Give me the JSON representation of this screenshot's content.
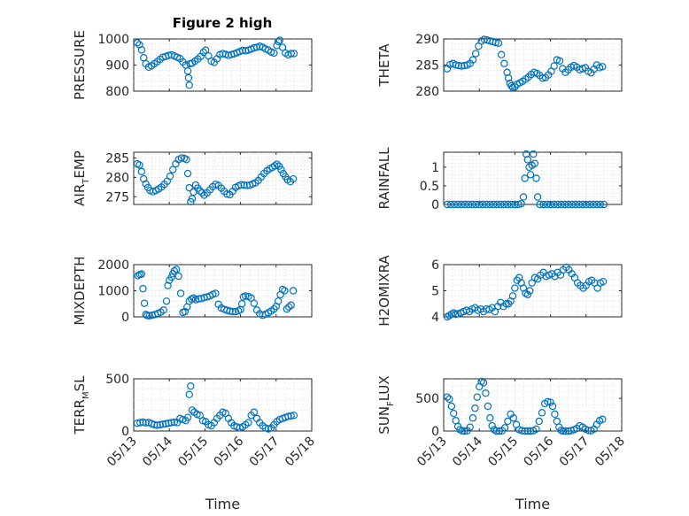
{
  "figure_title": "Figure 2 high",
  "chart_data": [
    {
      "type": "scatter",
      "ylabel": "PRESSURE",
      "ylim": [
        800,
        1000
      ],
      "yticks": [
        800,
        900,
        1000
      ],
      "ytick_labels": [
        "800",
        "900",
        "1000"
      ],
      "xlim": [
        0,
        5
      ],
      "xticks": [
        0,
        1,
        2,
        3,
        4,
        5
      ],
      "xtick_labels": [
        "05/13",
        "05/14",
        "05/15",
        "05/16",
        "05/17",
        "05/18"
      ],
      "show_xticklabels": false,
      "xlabel": "",
      "grid": true,
      "x": [
        0.1,
        0.16,
        0.22,
        0.28,
        0.34,
        0.42,
        0.5,
        0.58,
        0.66,
        0.74,
        0.82,
        0.9,
        0.98,
        1.06,
        1.14,
        1.22,
        1.3,
        1.38,
        1.46,
        1.52,
        1.54,
        1.56,
        1.58,
        1.64,
        1.72,
        1.8,
        1.88,
        1.96,
        2.02,
        2.1,
        2.18,
        2.26,
        2.34,
        2.42,
        2.5,
        2.58,
        2.66,
        2.74,
        2.82,
        2.9,
        2.98,
        3.06,
        3.14,
        3.22,
        3.3,
        3.38,
        3.46,
        3.54,
        3.62,
        3.7,
        3.78,
        3.86,
        3.94,
        4.02,
        4.06,
        4.1,
        4.18,
        4.26,
        4.34,
        4.42,
        4.5
      ],
      "y": [
        985,
        978,
        958,
        928,
        905,
        892,
        897,
        905,
        913,
        922,
        930,
        933,
        937,
        939,
        935,
        930,
        925,
        912,
        900,
        877,
        851,
        823,
        905,
        907,
        915,
        923,
        933,
        949,
        957,
        935,
        915,
        910,
        924,
        940,
        944,
        941,
        937,
        940,
        943,
        947,
        952,
        956,
        955,
        957,
        961,
        966,
        968,
        972,
        968,
        962,
        957,
        950,
        946,
        975,
        990,
        995,
        968,
        946,
        939,
        944,
        944
      ]
    },
    {
      "type": "scatter",
      "ylabel": "THETA",
      "ylim": [
        280,
        290
      ],
      "yticks": [
        280,
        285,
        290
      ],
      "ytick_labels": [
        "280",
        "285",
        "290"
      ],
      "xlim": [
        0,
        5
      ],
      "xticks": [
        0,
        1,
        2,
        3,
        4,
        5
      ],
      "xtick_labels": [
        "05/13",
        "05/14",
        "05/15",
        "05/16",
        "05/17",
        "05/18"
      ],
      "show_xticklabels": false,
      "xlabel": "",
      "grid": true,
      "x": [
        0.1,
        0.18,
        0.26,
        0.34,
        0.42,
        0.5,
        0.58,
        0.66,
        0.74,
        0.82,
        0.9,
        0.98,
        1.06,
        1.14,
        1.22,
        1.3,
        1.38,
        1.46,
        1.54,
        1.62,
        1.7,
        1.78,
        1.82,
        1.86,
        1.9,
        1.94,
        2.0,
        2.06,
        2.14,
        2.22,
        2.3,
        2.38,
        2.46,
        2.54,
        2.62,
        2.7,
        2.78,
        2.86,
        2.94,
        3.02,
        3.1,
        3.18,
        3.26,
        3.34,
        3.42,
        3.5,
        3.58,
        3.66,
        3.74,
        3.82,
        3.9,
        3.98,
        4.06,
        4.14,
        4.22,
        4.3,
        4.38,
        4.46
      ],
      "y": [
        284.3,
        285.1,
        285.3,
        285.0,
        284.9,
        284.8,
        284.9,
        285.0,
        285.3,
        286.0,
        287.2,
        288.6,
        289.6,
        289.9,
        289.8,
        289.6,
        289.5,
        289.3,
        289.2,
        287.0,
        285.3,
        283.6,
        282.5,
        281.5,
        281.0,
        280.7,
        280.8,
        281.3,
        281.6,
        281.9,
        282.3,
        282.7,
        283.2,
        283.6,
        283.4,
        283.0,
        282.5,
        282.6,
        283.1,
        283.8,
        284.8,
        286.0,
        285.8,
        284.3,
        283.6,
        284.1,
        284.6,
        284.9,
        284.6,
        284.1,
        284.3,
        284.5,
        283.8,
        283.5,
        284.2,
        285.0,
        284.5,
        284.7
      ]
    },
    {
      "type": "scatter",
      "ylabel": "AIR_T_EMP",
      "ylim": [
        273,
        286.5
      ],
      "yticks": [
        275,
        280,
        285
      ],
      "ytick_labels": [
        "275",
        "280",
        "285"
      ],
      "xlim": [
        0,
        5
      ],
      "xticks": [
        0,
        1,
        2,
        3,
        4,
        5
      ],
      "xtick_labels": [
        "05/13",
        "05/14",
        "05/15",
        "05/16",
        "05/17",
        "05/18"
      ],
      "show_xticklabels": false,
      "xlabel": "",
      "grid": true,
      "x": [
        0.1,
        0.16,
        0.22,
        0.28,
        0.34,
        0.4,
        0.46,
        0.54,
        0.62,
        0.7,
        0.78,
        0.86,
        0.94,
        1.02,
        1.1,
        1.18,
        1.26,
        1.34,
        1.42,
        1.48,
        1.52,
        1.56,
        1.6,
        1.64,
        1.68,
        1.74,
        1.8,
        1.86,
        1.92,
        1.98,
        2.06,
        2.14,
        2.22,
        2.3,
        2.38,
        2.46,
        2.54,
        2.62,
        2.7,
        2.78,
        2.86,
        2.94,
        3.02,
        3.1,
        3.18,
        3.26,
        3.34,
        3.42,
        3.5,
        3.58,
        3.66,
        3.74,
        3.82,
        3.9,
        3.96,
        4.02,
        4.08,
        4.14,
        4.2,
        4.26,
        4.32,
        4.4,
        4.48
      ],
      "y": [
        283.5,
        283.2,
        281.5,
        279.6,
        278.3,
        277.4,
        276.6,
        276.3,
        276.6,
        277.0,
        277.5,
        278.2,
        279.0,
        280.3,
        282.0,
        283.5,
        284.6,
        285.0,
        284.9,
        284.6,
        281.0,
        277.3,
        273.7,
        274.5,
        276.2,
        278.0,
        277.2,
        276.5,
        276.0,
        275.4,
        276.0,
        276.8,
        277.6,
        278.2,
        277.9,
        277.2,
        276.4,
        275.7,
        275.5,
        276.4,
        277.4,
        277.8,
        278.1,
        278.0,
        277.9,
        278.0,
        278.3,
        278.6,
        279.2,
        280.1,
        281.0,
        281.7,
        282.2,
        282.6,
        283.0,
        283.4,
        282.9,
        282.0,
        281.0,
        280.2,
        279.4,
        278.9,
        279.6
      ]
    },
    {
      "type": "scatter",
      "ylabel": "RAINFALL",
      "ylim": [
        0,
        1.4
      ],
      "yticks": [
        0,
        0.5,
        1
      ],
      "ytick_labels": [
        "0",
        "0.5",
        "1"
      ],
      "xlim": [
        0,
        5
      ],
      "xticks": [
        0,
        1,
        2,
        3,
        4,
        5
      ],
      "xtick_labels": [
        "05/13",
        "05/14",
        "05/15",
        "05/16",
        "05/17",
        "05/18"
      ],
      "show_xticklabels": false,
      "xlabel": "",
      "grid": true,
      "x": [
        0.1,
        0.2,
        0.3,
        0.4,
        0.5,
        0.6,
        0.7,
        0.8,
        0.9,
        1.0,
        1.1,
        1.2,
        1.3,
        1.4,
        1.5,
        1.6,
        1.7,
        1.8,
        1.9,
        2.0,
        2.1,
        2.18,
        2.24,
        2.28,
        2.32,
        2.36,
        2.4,
        2.44,
        2.48,
        2.52,
        2.56,
        2.6,
        2.64,
        2.7,
        2.8,
        2.9,
        3.0,
        3.1,
        3.2,
        3.3,
        3.4,
        3.5,
        3.6,
        3.7,
        3.8,
        3.9,
        4.0,
        4.1,
        4.2,
        4.3,
        4.4,
        4.5
      ],
      "y": [
        0,
        0,
        0,
        0,
        0,
        0,
        0,
        0,
        0,
        0,
        0,
        0,
        0,
        0,
        0,
        0,
        0,
        0,
        0,
        0,
        0,
        0.02,
        0.2,
        0.7,
        1.35,
        1.2,
        1.0,
        0.8,
        1.05,
        1.35,
        1.1,
        0.7,
        0.2,
        0,
        0,
        0,
        0,
        0,
        0,
        0,
        0,
        0,
        0,
        0,
        0,
        0,
        0,
        0,
        0,
        0,
        0,
        0
      ]
    },
    {
      "type": "scatter",
      "ylabel": "MIXDEPTH",
      "ylim": [
        0,
        2000
      ],
      "yticks": [
        0,
        1000,
        2000
      ],
      "ytick_labels": [
        "0",
        "1000",
        "2000"
      ],
      "xlim": [
        0,
        5
      ],
      "xticks": [
        0,
        1,
        2,
        3,
        4,
        5
      ],
      "xtick_labels": [
        "05/13",
        "05/14",
        "05/15",
        "05/16",
        "05/17",
        "05/18"
      ],
      "show_xticklabels": false,
      "xlabel": "",
      "grid": true,
      "x": [
        0.12,
        0.17,
        0.22,
        0.26,
        0.3,
        0.34,
        0.38,
        0.44,
        0.52,
        0.6,
        0.68,
        0.76,
        0.84,
        0.92,
        0.96,
        1.0,
        1.06,
        1.1,
        1.14,
        1.2,
        1.26,
        1.32,
        1.38,
        1.44,
        1.5,
        1.56,
        1.62,
        1.68,
        1.74,
        1.82,
        1.9,
        1.98,
        2.06,
        2.14,
        2.22,
        2.3,
        2.38,
        2.46,
        2.54,
        2.62,
        2.7,
        2.78,
        2.86,
        2.94,
        3.0,
        3.04,
        3.08,
        3.14,
        3.22,
        3.3,
        3.38,
        3.46,
        3.54,
        3.62,
        3.7,
        3.78,
        3.86,
        3.94,
        4.0,
        4.06,
        4.12,
        4.18,
        4.24,
        4.3,
        4.36,
        4.42,
        4.48
      ],
      "y": [
        1580,
        1620,
        1640,
        1080,
        520,
        90,
        50,
        45,
        60,
        90,
        130,
        180,
        260,
        600,
        1200,
        1400,
        1520,
        1650,
        1760,
        1820,
        1560,
        900,
        170,
        200,
        380,
        600,
        680,
        720,
        660,
        690,
        700,
        740,
        760,
        800,
        860,
        900,
        480,
        340,
        290,
        250,
        220,
        200,
        200,
        230,
        280,
        500,
        760,
        800,
        780,
        720,
        520,
        260,
        120,
        60,
        100,
        160,
        220,
        300,
        400,
        600,
        850,
        1050,
        1000,
        300,
        380,
        450,
        1000
      ]
    },
    {
      "type": "scatter",
      "ylabel": "H2OMIXRA",
      "ylim": [
        4,
        6
      ],
      "yticks": [
        4,
        5,
        6
      ],
      "ytick_labels": [
        "4",
        "5",
        "6"
      ],
      "xlim": [
        0,
        5
      ],
      "xticks": [
        0,
        1,
        2,
        3,
        4,
        5
      ],
      "xtick_labels": [
        "05/13",
        "05/14",
        "05/15",
        "05/16",
        "05/17",
        "05/18"
      ],
      "show_xticklabels": false,
      "xlabel": "",
      "grid": true,
      "x": [
        0.1,
        0.16,
        0.22,
        0.28,
        0.34,
        0.4,
        0.48,
        0.56,
        0.64,
        0.72,
        0.8,
        0.88,
        0.96,
        1.04,
        1.12,
        1.2,
        1.28,
        1.36,
        1.44,
        1.52,
        1.6,
        1.68,
        1.76,
        1.82,
        1.88,
        1.94,
        2.0,
        2.06,
        2.12,
        2.18,
        2.24,
        2.3,
        2.36,
        2.42,
        2.48,
        2.56,
        2.64,
        2.72,
        2.8,
        2.88,
        2.96,
        3.04,
        3.12,
        3.2,
        3.28,
        3.36,
        3.44,
        3.52,
        3.6,
        3.68,
        3.76,
        3.84,
        3.92,
        4.0,
        4.08,
        4.16,
        4.24,
        4.32,
        4.4,
        4.48
      ],
      "y": [
        4.0,
        4.05,
        4.1,
        4.15,
        4.1,
        4.12,
        4.15,
        4.2,
        4.25,
        4.2,
        4.3,
        4.35,
        4.25,
        4.3,
        4.2,
        4.3,
        4.28,
        4.35,
        4.2,
        4.4,
        4.55,
        4.4,
        4.5,
        4.5,
        4.6,
        4.8,
        5.1,
        5.4,
        5.5,
        5.3,
        5.1,
        4.9,
        4.85,
        5.0,
        5.3,
        5.5,
        5.45,
        5.6,
        5.7,
        5.55,
        5.6,
        5.65,
        5.55,
        5.7,
        5.6,
        5.8,
        5.9,
        5.8,
        5.65,
        5.5,
        5.3,
        5.2,
        5.1,
        5.2,
        5.35,
        5.4,
        5.3,
        5.1,
        5.3,
        5.35
      ]
    },
    {
      "type": "scatter",
      "ylabel": "TERR_M_SL",
      "ylim": [
        0,
        500
      ],
      "yticks": [
        0,
        500
      ],
      "ytick_labels": [
        "0",
        "500"
      ],
      "xlim": [
        0,
        5
      ],
      "xticks": [
        0,
        1,
        2,
        3,
        4,
        5
      ],
      "xtick_labels": [
        "05/13",
        "05/14",
        "05/15",
        "05/16",
        "05/17",
        "05/18"
      ],
      "show_xticklabels": true,
      "xlabel": "Time",
      "grid": true,
      "x": [
        0.1,
        0.18,
        0.26,
        0.34,
        0.42,
        0.5,
        0.58,
        0.66,
        0.74,
        0.82,
        0.9,
        0.98,
        1.06,
        1.14,
        1.22,
        1.3,
        1.38,
        1.46,
        1.52,
        1.56,
        1.6,
        1.64,
        1.7,
        1.78,
        1.86,
        1.94,
        2.02,
        2.1,
        2.18,
        2.26,
        2.34,
        2.42,
        2.5,
        2.58,
        2.66,
        2.74,
        2.82,
        2.9,
        2.98,
        3.06,
        3.14,
        3.22,
        3.3,
        3.38,
        3.46,
        3.54,
        3.62,
        3.7,
        3.78,
        3.86,
        3.94,
        4.02,
        4.1,
        4.18,
        4.26,
        4.34,
        4.42,
        4.5
      ],
      "y": [
        75,
        80,
        85,
        78,
        82,
        70,
        60,
        55,
        60,
        65,
        70,
        75,
        80,
        85,
        80,
        120,
        110,
        100,
        130,
        350,
        430,
        200,
        180,
        160,
        150,
        100,
        90,
        60,
        50,
        80,
        120,
        150,
        180,
        170,
        120,
        80,
        50,
        40,
        30,
        40,
        60,
        80,
        150,
        180,
        120,
        80,
        50,
        30,
        20,
        30,
        60,
        90,
        110,
        120,
        130,
        140,
        145,
        150
      ]
    },
    {
      "type": "scatter",
      "ylabel": "SUN_F_LUX",
      "ylim": [
        0,
        800
      ],
      "yticks": [
        0,
        500
      ],
      "ytick_labels": [
        "0",
        "500"
      ],
      "xlim": [
        0,
        5
      ],
      "xticks": [
        0,
        1,
        2,
        3,
        4,
        5
      ],
      "xtick_labels": [
        "05/13",
        "05/14",
        "05/15",
        "05/16",
        "05/17",
        "05/18"
      ],
      "show_xticklabels": true,
      "xlabel": "Time",
      "grid": true,
      "x": [
        0.1,
        0.16,
        0.22,
        0.28,
        0.34,
        0.4,
        0.46,
        0.52,
        0.58,
        0.66,
        0.74,
        0.82,
        0.88,
        0.94,
        1.0,
        1.06,
        1.12,
        1.18,
        1.24,
        1.3,
        1.36,
        1.42,
        1.48,
        1.56,
        1.64,
        1.72,
        1.8,
        1.88,
        1.96,
        2.04,
        2.12,
        2.2,
        2.28,
        2.36,
        2.44,
        2.52,
        2.6,
        2.68,
        2.76,
        2.84,
        2.92,
        3.0,
        3.06,
        3.12,
        3.18,
        3.24,
        3.3,
        3.36,
        3.42,
        3.5,
        3.58,
        3.66,
        3.74,
        3.82,
        3.9,
        3.98,
        4.06,
        4.14,
        4.22,
        4.3,
        4.38,
        4.46
      ],
      "y": [
        520,
        490,
        380,
        270,
        160,
        70,
        20,
        5,
        0,
        5,
        60,
        200,
        350,
        520,
        680,
        760,
        740,
        580,
        380,
        200,
        80,
        20,
        0,
        0,
        5,
        50,
        150,
        260,
        200,
        100,
        20,
        5,
        0,
        0,
        0,
        5,
        30,
        150,
        280,
        420,
        450,
        440,
        380,
        260,
        150,
        60,
        10,
        0,
        0,
        0,
        5,
        20,
        40,
        80,
        60,
        30,
        10,
        5,
        30,
        100,
        160,
        180
      ]
    }
  ]
}
